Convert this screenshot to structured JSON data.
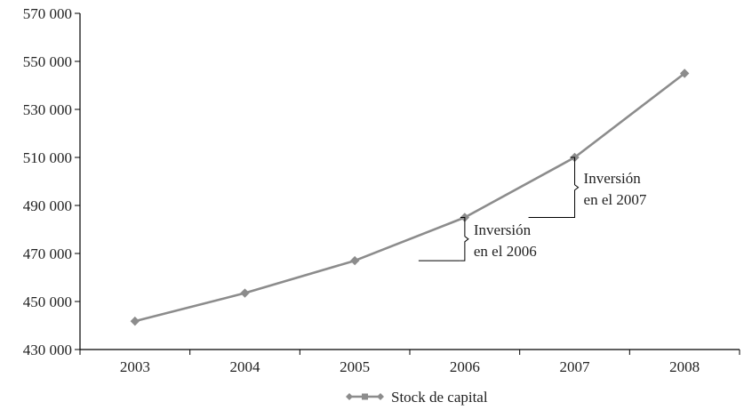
{
  "colors": {
    "series": "#8c8c8c",
    "axis": "#000000",
    "text": "#222222"
  },
  "chart_data": {
    "type": "line",
    "title": "",
    "xlabel": "",
    "ylabel": "",
    "categories": [
      "2003",
      "2004",
      "2005",
      "2006",
      "2007",
      "2008"
    ],
    "series": [
      {
        "name": "Stock de capital",
        "values": [
          441800,
          453500,
          467000,
          485000,
          510000,
          545000
        ],
        "marker": "diamond"
      }
    ],
    "ylim": [
      430000,
      570000
    ],
    "yticks": [
      430000,
      450000,
      470000,
      490000,
      510000,
      530000,
      550000,
      570000
    ],
    "ytick_labels": [
      "430 000",
      "450 000",
      "470 000",
      "490 000",
      "510 000",
      "530 000",
      "550 000",
      "570 000"
    ],
    "grid": false,
    "legend": {
      "position": "bottom",
      "entries": [
        "Stock de capital"
      ]
    },
    "annotations": [
      {
        "text_lines": [
          "Inversión",
          "en el 2006"
        ],
        "from_value": 467000,
        "to_value": 485000,
        "between": [
          "2005",
          "2006"
        ]
      },
      {
        "text_lines": [
          "Inversión",
          "en el 2007"
        ],
        "from_value": 485000,
        "to_value": 510000,
        "between": [
          "2006",
          "2007"
        ]
      }
    ]
  }
}
